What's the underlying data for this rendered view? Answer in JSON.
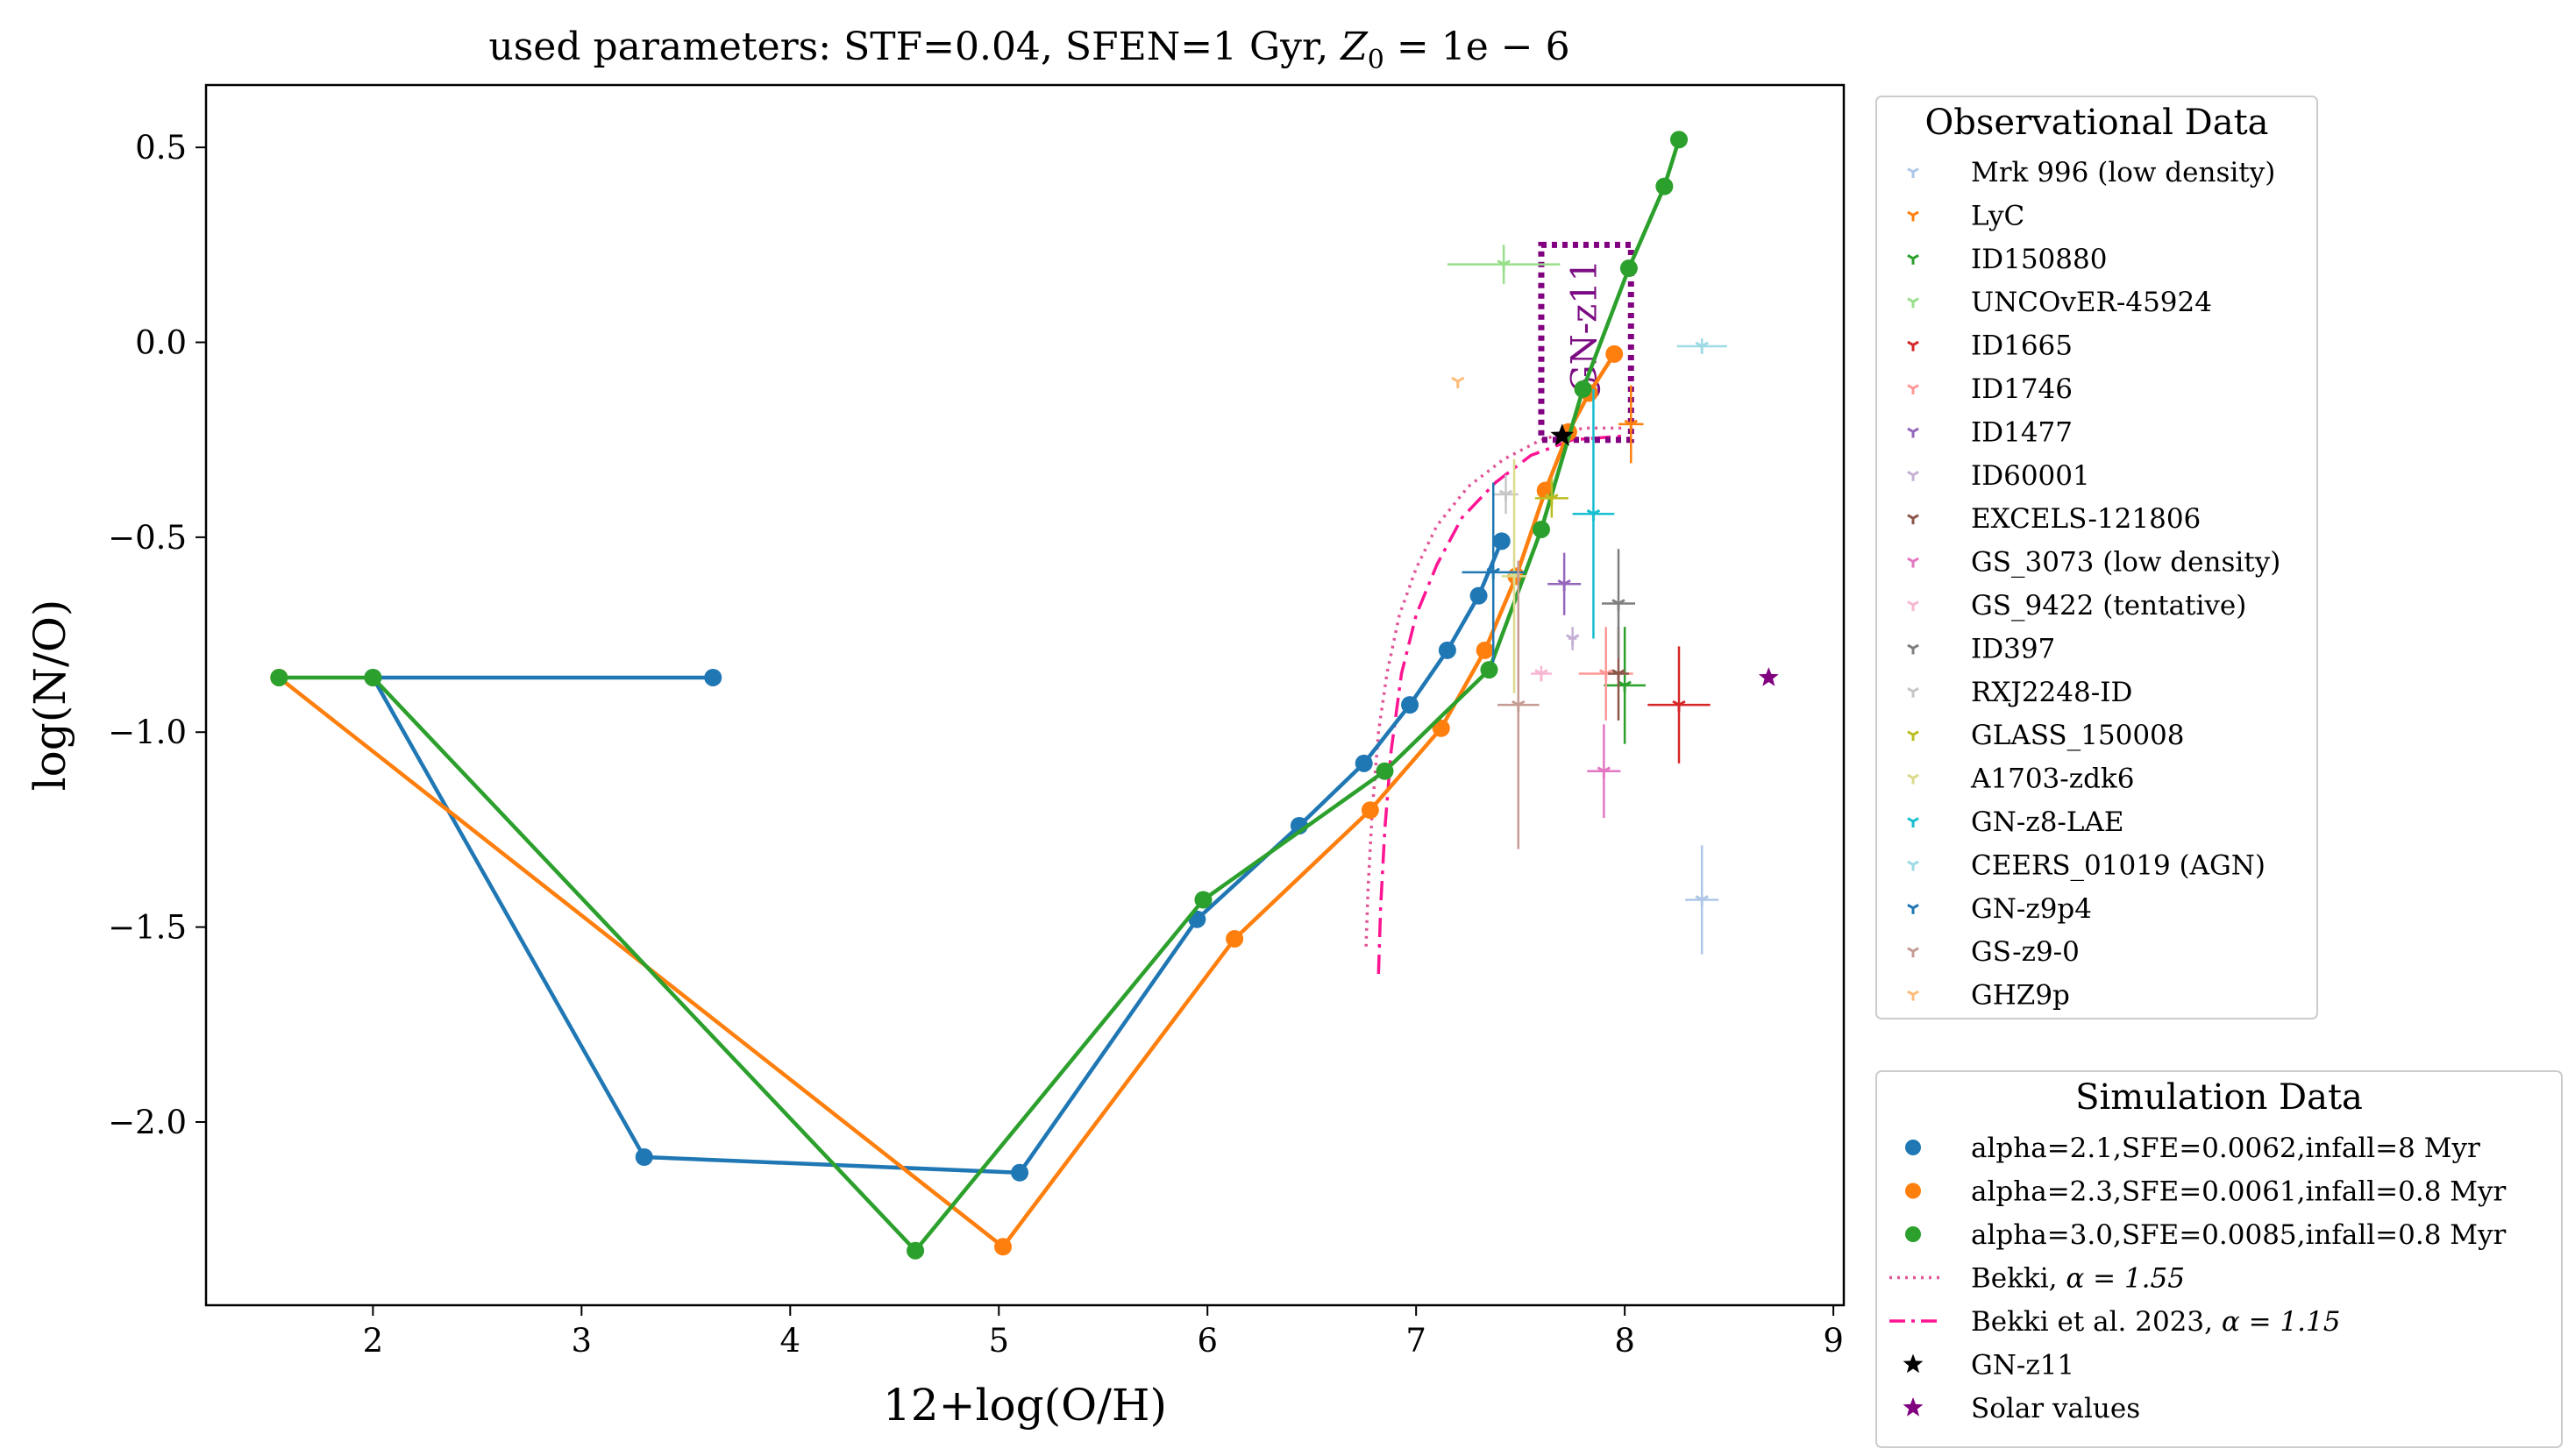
{
  "chart_data": {
    "type": "scatter",
    "title_prefix": "used parameters: STF=0.04, SFEN=1 Gyr, ",
    "title_math": "Z",
    "title_sub": "0",
    "title_rest": " = 1e − 6",
    "xlabel": "12+log(O/H)",
    "ylabel": "log(N/O)",
    "xlim": [
      1.2,
      9.05
    ],
    "ylim": [
      -2.47,
      0.66
    ],
    "xticks": [
      {
        "v": 2,
        "label": "2"
      },
      {
        "v": 3,
        "label": "3"
      },
      {
        "v": 4,
        "label": "4"
      },
      {
        "v": 5,
        "label": "5"
      },
      {
        "v": 6,
        "label": "6"
      },
      {
        "v": 7,
        "label": "7"
      },
      {
        "v": 8,
        "label": "8"
      },
      {
        "v": 9,
        "label": "9"
      }
    ],
    "yticks": [
      {
        "v": 0.5,
        "label": "0.5"
      },
      {
        "v": 0.0,
        "label": "0.0"
      },
      {
        "v": -0.5,
        "label": "−0.5"
      },
      {
        "v": -1.0,
        "label": "−1.0"
      },
      {
        "v": -1.5,
        "label": "−1.5"
      },
      {
        "v": -2.0,
        "label": "−2.0"
      }
    ],
    "grid": false,
    "simulation_series": [
      {
        "name": "alpha=2.1,SFE=0.0062,infall=8 Myr",
        "color": "#1f77b4",
        "points": [
          [
            3.63,
            -0.86
          ],
          [
            2.0,
            -0.86
          ],
          [
            3.3,
            -2.09
          ],
          [
            5.1,
            -2.13
          ],
          [
            5.95,
            -1.48
          ],
          [
            6.44,
            -1.24
          ],
          [
            6.75,
            -1.08
          ],
          [
            6.97,
            -0.93
          ],
          [
            7.15,
            -0.79
          ],
          [
            7.3,
            -0.65
          ],
          [
            7.41,
            -0.51
          ]
        ]
      },
      {
        "name": "alpha=2.3,SFE=0.0061,infall=0.8 Myr",
        "color": "#ff7f0e",
        "points": [
          [
            1.55,
            -0.86
          ],
          [
            5.02,
            -2.32
          ],
          [
            6.13,
            -1.53
          ],
          [
            6.78,
            -1.2
          ],
          [
            7.12,
            -0.99
          ],
          [
            7.33,
            -0.79
          ],
          [
            7.48,
            -0.6
          ],
          [
            7.62,
            -0.38
          ],
          [
            7.73,
            -0.23
          ],
          [
            7.83,
            -0.13
          ],
          [
            7.95,
            -0.03
          ]
        ]
      },
      {
        "name": "alpha=3.0,SFE=0.0085,infall=0.8 Myr",
        "color": "#2ca02c",
        "points": [
          [
            1.55,
            -0.86
          ],
          [
            2.0,
            -0.86
          ],
          [
            4.6,
            -2.33
          ],
          [
            5.98,
            -1.43
          ],
          [
            6.85,
            -1.1
          ],
          [
            7.35,
            -0.84
          ],
          [
            7.6,
            -0.48
          ],
          [
            7.8,
            -0.12
          ],
          [
            8.02,
            0.19
          ],
          [
            8.19,
            0.4
          ],
          [
            8.26,
            0.52
          ]
        ]
      }
    ],
    "observational_data": [
      {
        "name": "Mrk 996 (low density)",
        "color": "#aec7e8",
        "x": 8.37,
        "y": -1.43,
        "xerr": 0.08,
        "yerr": 0.14
      },
      {
        "name": "LyC",
        "color": "#ff7f0e",
        "x": 8.03,
        "y": -0.21,
        "xerr": 0.06,
        "yerr": 0.1
      },
      {
        "name": "ID150880",
        "color": "#2ca02c",
        "x": 8.0,
        "y": -0.88,
        "xerr": 0.1,
        "yerr": 0.15
      },
      {
        "name": "UNCOvER-45924",
        "color": "#98df8a",
        "x": 7.42,
        "y": 0.2,
        "xerr": 0.27,
        "yerr": 0.05
      },
      {
        "name": "ID1665",
        "color": "#d62728",
        "x": 8.26,
        "y": -0.93,
        "xerr": 0.15,
        "yerr": 0.15
      },
      {
        "name": "ID1746",
        "color": "#ff9896",
        "x": 7.91,
        "y": -0.85,
        "xerr": 0.13,
        "yerr": 0.12
      },
      {
        "name": "ID1477",
        "color": "#9467bd",
        "x": 7.71,
        "y": -0.62,
        "xerr": 0.08,
        "yerr": 0.08
      },
      {
        "name": "ID60001",
        "color": "#c5b0d5",
        "x": 7.75,
        "y": -0.76,
        "xerr": 0.02,
        "yerr": 0.03
      },
      {
        "name": "EXCELS-121806",
        "color": "#8c564b",
        "x": 7.97,
        "y": -0.85,
        "xerr": 0.05,
        "yerr": 0.12
      },
      {
        "name": "GS_3073 (low density)",
        "color": "#e377c2",
        "x": 7.9,
        "y": -1.1,
        "xerr": 0.08,
        "yerr": 0.12
      },
      {
        "name": "GS_9422 (tentative)",
        "color": "#f7b6d2",
        "x": 7.6,
        "y": -0.85,
        "xerr": 0.05,
        "yerr": 0.02
      },
      {
        "name": "ID397",
        "color": "#7f7f7f",
        "x": 7.97,
        "y": -0.67,
        "xerr": 0.08,
        "yerr": 0.14
      },
      {
        "name": "RXJ2248-ID",
        "color": "#c7c7c7",
        "x": 7.43,
        "y": -0.39,
        "xerr": 0.06,
        "yerr": 0.05
      },
      {
        "name": "GLASS_150008",
        "color": "#bcbd22",
        "x": 7.65,
        "y": -0.4,
        "xerr": 0.08,
        "yerr": 0.05
      },
      {
        "name": "A1703-zdk6",
        "color": "#dbdb8d",
        "x": 7.47,
        "y": -0.6,
        "xerr": 0.06,
        "yerr": 0.3
      },
      {
        "name": "GN-z8-LAE",
        "color": "#17becf",
        "x": 7.85,
        "y": -0.44,
        "xerr": 0.1,
        "yerr": 0.32
      },
      {
        "name": "CEERS_01019 (AGN)",
        "color": "#9edae5",
        "x": 8.37,
        "y": -0.01,
        "xerr": 0.12,
        "yerr": 0.02
      },
      {
        "name": "GN-z9p4",
        "color": "#1f77b4",
        "x": 7.37,
        "y": -0.59,
        "xerr": 0.15,
        "yerr": 0.23
      },
      {
        "name": "GS-z9-0",
        "color": "#c49c94",
        "x": 7.49,
        "y": -0.93,
        "xerr": 0.1,
        "yerr": 0.37
      },
      {
        "name": "GHZ9p",
        "color": "#ffbb78",
        "x": 7.2,
        "y": -0.1,
        "xerr": 0.0,
        "yerr": 0.0
      }
    ],
    "bekki_lines": [
      {
        "name": "Bekki, α = 1.55",
        "color": "#e15598",
        "style": "dotted",
        "points": [
          [
            6.76,
            -1.55
          ],
          [
            6.77,
            -1.4
          ],
          [
            6.79,
            -1.2
          ],
          [
            6.82,
            -1.0
          ],
          [
            6.86,
            -0.85
          ],
          [
            6.92,
            -0.7
          ],
          [
            7.0,
            -0.58
          ],
          [
            7.1,
            -0.47
          ],
          [
            7.25,
            -0.37
          ],
          [
            7.42,
            -0.3
          ],
          [
            7.6,
            -0.25
          ],
          [
            7.8,
            -0.22
          ],
          [
            8.0,
            -0.22
          ]
        ]
      },
      {
        "name": "Bekki et al. 2023, α = 1.15",
        "color": "#ff1493",
        "style": "dashdot",
        "points": [
          [
            6.82,
            -1.62
          ],
          [
            6.83,
            -1.45
          ],
          [
            6.85,
            -1.25
          ],
          [
            6.88,
            -1.05
          ],
          [
            6.93,
            -0.85
          ],
          [
            7.0,
            -0.7
          ],
          [
            7.1,
            -0.57
          ],
          [
            7.22,
            -0.45
          ],
          [
            7.38,
            -0.36
          ],
          [
            7.55,
            -0.29
          ],
          [
            7.75,
            -0.25
          ],
          [
            8.0,
            -0.24
          ]
        ]
      }
    ],
    "gn_z11": {
      "label": "GN-z11",
      "x": 7.7,
      "y": -0.24,
      "color": "#000000",
      "box": {
        "x0": 7.6,
        "x1": 8.03,
        "y0": -0.25,
        "y1": 0.25,
        "color": "#800080"
      }
    },
    "solar": {
      "label": "Solar values",
      "x": 8.69,
      "y": -0.86,
      "color": "#800080"
    },
    "legend_obs_title": "Observational Data",
    "legend_sim_title": "Simulation Data",
    "legend_sim_extra": [
      {
        "label": "Bekki, ",
        "math": "α = 1.55",
        "kind": "dotted",
        "color": "#e15598"
      },
      {
        "label": "Bekki et al. 2023, ",
        "math": "α = 1.15",
        "kind": "dashdot",
        "color": "#ff1493"
      },
      {
        "label": "GN-z11",
        "kind": "star",
        "color": "#000000"
      },
      {
        "label": "Solar values",
        "kind": "star",
        "color": "#800080"
      }
    ]
  }
}
